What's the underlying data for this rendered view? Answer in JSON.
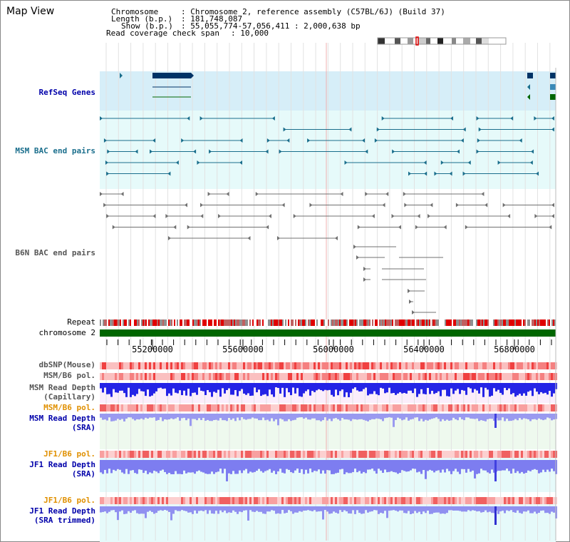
{
  "title": "Map View",
  "info": {
    "chromosome_key": "Chromosome",
    "chromosome_val": ": Chromosome 2, reference assembly (C57BL/6J) (Build 37)",
    "length_key": "Length (b.p.)",
    "length_val": ": 181,748,087",
    "show_key": "Show (b.p.)",
    "show_val": ": 55,055,774-57,056,411 : 2,000,638 bp",
    "coverage_key": "Read coverage check span",
    "coverage_val": ": 10,000"
  },
  "tracks": {
    "refseq": "RefSeq Genes",
    "msm_bac": "MSM BAC end pairs",
    "b6n_bac": "B6N BAC end pairs",
    "repeat": "Repeat",
    "chromosome": "chromosome 2",
    "dbsnp": "dbSNP(Mouse)",
    "msm_b6_pol": "MSM/B6 pol.",
    "msm_depth_cap_1": "MSM Read Depth",
    "msm_depth_cap_2": "(Capillary)",
    "msm_b6_pol_2": "MSM/B6 pol.",
    "msm_depth_sra_1": "MSM Read Depth",
    "msm_depth_sra_2": "(SRA)",
    "jf1_pol_1": "JF1/B6 pol.",
    "jf1_depth_1": "JF1 Read Depth",
    "jf1_depth_2": "(SRA)",
    "jf1_pol_2": "JF1/B6 pol.",
    "jf1_trim_1": "JF1 Read Depth",
    "jf1_trim_2": "(SRA trimmed)"
  },
  "axis": {
    "ticks": [
      "55200000",
      "55600000",
      "56000000",
      "56400000",
      "56800000"
    ]
  },
  "colors": {
    "refseq_bg": "#d6eef8",
    "msm_bg": "#e6fafa",
    "navy": "#003366",
    "teal": "#1a6e8c",
    "gray": "#707070",
    "green": "#006600",
    "blue_depth": "#2424e6",
    "label_blue": "#0000aa",
    "label_orange": "#e09000"
  }
}
